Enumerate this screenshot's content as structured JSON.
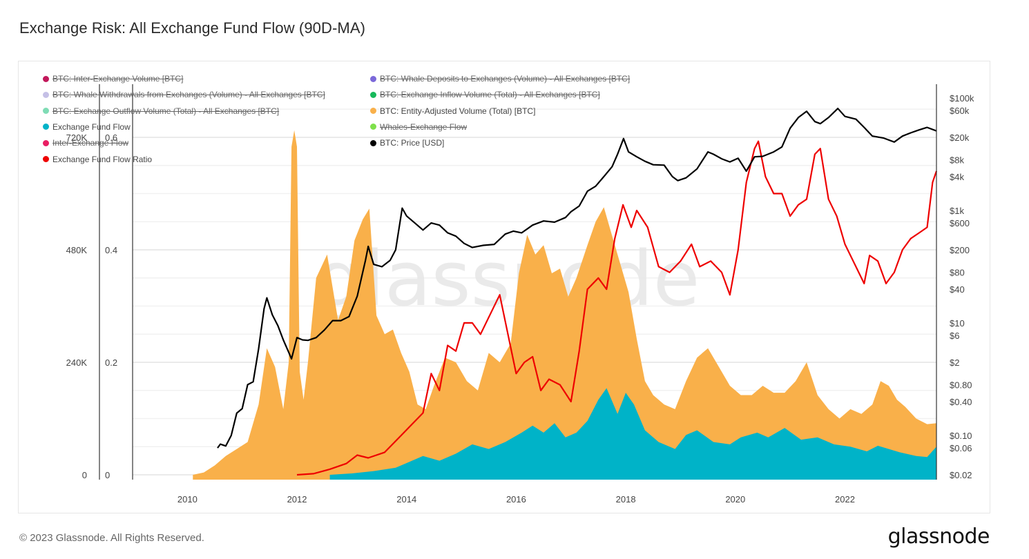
{
  "title": "Exchange Risk: All Exchange Fund Flow (90D-MA)",
  "footer": {
    "copyright": "© 2023 Glassnode. All Rights Reserved.",
    "logo": "glassnode"
  },
  "watermark": "glassnode",
  "legend": [
    {
      "label": "BTC: Inter-Exchange Volume [BTC]",
      "color": "#c2185b",
      "enabled": false
    },
    {
      "label": "BTC: Whale Deposits to Exchanges (Volume) - All Exchanges [BTC]",
      "color": "#7b68d9",
      "enabled": false
    },
    {
      "label": "BTC: Whale Withdrawals from Exchanges (Volume) - All Exchanges [BTC]",
      "color": "#c5c0e6",
      "enabled": false
    },
    {
      "label": "BTC: Exchange Inflow Volume (Total) - All Exchanges [BTC]",
      "color": "#16b85a",
      "enabled": false
    },
    {
      "label": "BTC: Exchange Outflow Volume (Total) - All Exchanges [BTC]",
      "color": "#7fdcb5",
      "enabled": false
    },
    {
      "label": "BTC: Entity-Adjusted Volume (Total) [BTC]",
      "color": "#f9b04a",
      "enabled": true
    },
    {
      "label": "Exchange Fund Flow",
      "color": "#00b3c8",
      "enabled": true
    },
    {
      "label": "Whales-Exchange Flow",
      "color": "#7ee04a",
      "enabled": false
    },
    {
      "label": "Inter-Exchange Flow",
      "color": "#e91e63",
      "enabled": false
    },
    {
      "label": "BTC: Price [USD]",
      "color": "#000000",
      "enabled": true
    },
    {
      "label": "Exchange Fund Flow Ratio",
      "color": "#ee0000",
      "enabled": true
    }
  ],
  "chart_data": {
    "type": "area",
    "title": "Exchange Risk: All Exchange Fund Flow (90D-MA)",
    "x_range": [
      2009.0,
      2023.67
    ],
    "x_ticks": [
      "2010",
      "2012",
      "2014",
      "2016",
      "2018",
      "2020",
      "2022"
    ],
    "x_tick_values": [
      2010,
      2012,
      2014,
      2016,
      2018,
      2020,
      2022
    ],
    "y_axis_volume": {
      "ticks": [
        "0",
        "240K",
        "480K",
        "720K"
      ],
      "tick_values": [
        0,
        240000,
        480000,
        720000
      ],
      "range": [
        0,
        780000
      ]
    },
    "y_axis_ratio": {
      "ticks": [
        "0",
        "0.2",
        "0.4",
        "0.6"
      ],
      "tick_values": [
        0,
        0.2,
        0.4,
        0.6
      ],
      "range": [
        0,
        0.65
      ]
    },
    "y_axis_price": {
      "scale": "log",
      "ticks": [
        "$100k",
        "$60k",
        "$20k",
        "$8k",
        "$4k",
        "$1k",
        "$600",
        "$200",
        "$80",
        "$40",
        "$10",
        "$6",
        "$2",
        "$0.80",
        "$0.40",
        "$0.10",
        "$0.06",
        "$0.02"
      ],
      "tick_values": [
        100000,
        60000,
        20000,
        8000,
        4000,
        1000,
        600,
        200,
        80,
        40,
        10,
        6,
        2,
        0.8,
        0.4,
        0.1,
        0.06,
        0.02
      ],
      "range": [
        0.02,
        100000
      ]
    },
    "grid": true,
    "legend_position": "top-left",
    "series": [
      {
        "name": "BTC: Entity-Adjusted Volume (Total) [BTC]",
        "type": "area",
        "axis": "volume",
        "color": "#f9b04a",
        "x": [
          2010.1,
          2010.3,
          2010.5,
          2010.7,
          2010.9,
          2011.1,
          2011.3,
          2011.45,
          2011.6,
          2011.75,
          2011.85,
          2011.9,
          2011.95,
          2012.0,
          2012.05,
          2012.12,
          2012.2,
          2012.35,
          2012.55,
          2012.75,
          2012.9,
          2013.05,
          2013.2,
          2013.32,
          2013.45,
          2013.6,
          2013.75,
          2013.9,
          2014.05,
          2014.2,
          2014.35,
          2014.5,
          2014.7,
          2014.9,
          2015.1,
          2015.3,
          2015.5,
          2015.7,
          2015.9,
          2016.05,
          2016.2,
          2016.35,
          2016.5,
          2016.65,
          2016.8,
          2016.95,
          2017.1,
          2017.3,
          2017.45,
          2017.6,
          2017.75,
          2017.9,
          2018.05,
          2018.2,
          2018.35,
          2018.5,
          2018.7,
          2018.9,
          2019.1,
          2019.3,
          2019.5,
          2019.7,
          2019.9,
          2020.1,
          2020.3,
          2020.5,
          2020.7,
          2020.9,
          2021.1,
          2021.3,
          2021.5,
          2021.7,
          2021.9,
          2022.1,
          2022.3,
          2022.5,
          2022.65,
          2022.8,
          2022.95,
          2023.1,
          2023.3,
          2023.5,
          2023.67
        ],
        "values": [
          0,
          5000,
          20000,
          40000,
          55000,
          70000,
          150000,
          270000,
          230000,
          140000,
          240000,
          700000,
          735000,
          700000,
          220000,
          160000,
          240000,
          420000,
          470000,
          330000,
          380000,
          500000,
          545000,
          568000,
          340000,
          300000,
          310000,
          260000,
          220000,
          150000,
          140000,
          190000,
          250000,
          240000,
          200000,
          180000,
          260000,
          240000,
          280000,
          430000,
          512000,
          470000,
          490000,
          430000,
          440000,
          380000,
          420000,
          490000,
          540000,
          571000,
          510000,
          450000,
          390000,
          290000,
          200000,
          170000,
          150000,
          140000,
          200000,
          250000,
          270000,
          230000,
          190000,
          170000,
          170000,
          190000,
          175000,
          175000,
          200000,
          240000,
          170000,
          140000,
          120000,
          140000,
          130000,
          150000,
          200000,
          190000,
          160000,
          145000,
          120000,
          108000,
          110000
        ]
      },
      {
        "name": "Exchange Fund Flow",
        "type": "area",
        "axis": "volume",
        "color": "#00b3c8",
        "x": [
          2012.6,
          2013.0,
          2013.4,
          2013.8,
          2014.0,
          2014.3,
          2014.6,
          2014.9,
          2015.2,
          2015.5,
          2015.8,
          2016.1,
          2016.3,
          2016.5,
          2016.7,
          2016.9,
          2017.1,
          2017.3,
          2017.5,
          2017.65,
          2017.85,
          2018.0,
          2018.15,
          2018.35,
          2018.6,
          2018.9,
          2019.1,
          2019.3,
          2019.6,
          2019.9,
          2020.1,
          2020.4,
          2020.6,
          2020.9,
          2021.2,
          2021.5,
          2021.8,
          2022.1,
          2022.4,
          2022.6,
          2022.8,
          2023.0,
          2023.3,
          2023.5,
          2023.67
        ],
        "values": [
          0,
          3000,
          8000,
          15000,
          25000,
          40000,
          30000,
          45000,
          65000,
          55000,
          70000,
          90000,
          105000,
          90000,
          110000,
          80000,
          90000,
          115000,
          160000,
          185000,
          130000,
          175000,
          150000,
          95000,
          70000,
          55000,
          85000,
          95000,
          70000,
          65000,
          80000,
          90000,
          80000,
          100000,
          75000,
          80000,
          65000,
          60000,
          50000,
          62000,
          55000,
          48000,
          40000,
          38000,
          60000
        ]
      },
      {
        "name": "Exchange Fund Flow Ratio",
        "type": "line",
        "axis": "ratio",
        "color": "#ee0000",
        "x": [
          2012.0,
          2012.3,
          2012.6,
          2012.9,
          2013.1,
          2013.3,
          2013.6,
          2013.9,
          2014.1,
          2014.3,
          2014.45,
          2014.6,
          2014.75,
          2014.9,
          2015.05,
          2015.2,
          2015.35,
          2015.5,
          2015.7,
          2015.85,
          2016.0,
          2016.15,
          2016.3,
          2016.45,
          2016.6,
          2016.8,
          2017.0,
          2017.15,
          2017.3,
          2017.5,
          2017.65,
          2017.8,
          2017.95,
          2018.1,
          2018.2,
          2018.4,
          2018.6,
          2018.8,
          2019.0,
          2019.2,
          2019.35,
          2019.55,
          2019.75,
          2019.9,
          2020.05,
          2020.2,
          2020.35,
          2020.42,
          2020.55,
          2020.7,
          2020.85,
          2021.0,
          2021.15,
          2021.3,
          2021.45,
          2021.55,
          2021.7,
          2021.85,
          2022.0,
          2022.2,
          2022.35,
          2022.45,
          2022.6,
          2022.75,
          2022.9,
          2023.05,
          2023.2,
          2023.35,
          2023.5,
          2023.6,
          2023.67
        ],
        "values": [
          0.0,
          0.002,
          0.01,
          0.02,
          0.035,
          0.03,
          0.04,
          0.07,
          0.09,
          0.11,
          0.18,
          0.15,
          0.23,
          0.22,
          0.27,
          0.27,
          0.25,
          0.28,
          0.32,
          0.25,
          0.18,
          0.2,
          0.21,
          0.15,
          0.17,
          0.16,
          0.13,
          0.22,
          0.33,
          0.35,
          0.33,
          0.42,
          0.48,
          0.44,
          0.47,
          0.44,
          0.37,
          0.36,
          0.38,
          0.41,
          0.37,
          0.38,
          0.36,
          0.32,
          0.4,
          0.52,
          0.58,
          0.593,
          0.53,
          0.5,
          0.5,
          0.46,
          0.48,
          0.49,
          0.57,
          0.58,
          0.49,
          0.46,
          0.41,
          0.37,
          0.34,
          0.39,
          0.38,
          0.34,
          0.36,
          0.4,
          0.42,
          0.43,
          0.44,
          0.52,
          0.54
        ]
      },
      {
        "name": "BTC: Price [USD]",
        "type": "line",
        "axis": "price",
        "color": "#000000",
        "x": [
          2010.55,
          2010.6,
          2010.7,
          2010.8,
          2010.9,
          2011.0,
          2011.1,
          2011.2,
          2011.3,
          2011.4,
          2011.45,
          2011.55,
          2011.65,
          2011.75,
          2011.85,
          2011.9,
          2012.0,
          2012.1,
          2012.2,
          2012.35,
          2012.5,
          2012.65,
          2012.8,
          2012.95,
          2013.1,
          2013.25,
          2013.3,
          2013.4,
          2013.55,
          2013.7,
          2013.8,
          2013.92,
          2014.0,
          2014.15,
          2014.3,
          2014.45,
          2014.6,
          2014.75,
          2014.9,
          2015.05,
          2015.2,
          2015.4,
          2015.6,
          2015.8,
          2015.95,
          2016.1,
          2016.3,
          2016.5,
          2016.7,
          2016.9,
          2017.0,
          2017.15,
          2017.3,
          2017.45,
          2017.6,
          2017.75,
          2017.85,
          2017.96,
          2018.05,
          2018.2,
          2018.35,
          2018.5,
          2018.7,
          2018.85,
          2018.95,
          2019.1,
          2019.3,
          2019.5,
          2019.6,
          2019.75,
          2019.9,
          2020.05,
          2020.2,
          2020.35,
          2020.5,
          2020.7,
          2020.85,
          2021.0,
          2021.15,
          2021.3,
          2021.45,
          2021.55,
          2021.7,
          2021.87,
          2022.0,
          2022.2,
          2022.35,
          2022.5,
          2022.7,
          2022.9,
          2023.05,
          2023.2,
          2023.35,
          2023.5,
          2023.67
        ],
        "values": [
          0.06,
          0.07,
          0.065,
          0.1,
          0.25,
          0.3,
          0.8,
          0.9,
          3.5,
          18,
          28,
          14,
          9,
          5,
          3.0,
          2.3,
          5.5,
          5.0,
          4.9,
          5.5,
          7.5,
          11,
          11,
          13,
          30,
          130,
          230,
          110,
          100,
          130,
          200,
          1100,
          800,
          600,
          450,
          600,
          550,
          400,
          350,
          260,
          220,
          240,
          250,
          380,
          430,
          400,
          550,
          650,
          620,
          750,
          950,
          1200,
          2200,
          2700,
          4000,
          6000,
          10000,
          19000,
          11000,
          9000,
          7500,
          6500,
          6400,
          4000,
          3400,
          3800,
          5500,
          11000,
          10000,
          8300,
          7300,
          8500,
          5000,
          9000,
          9200,
          11000,
          13500,
          29000,
          45000,
          58000,
          38000,
          35000,
          45000,
          65000,
          47000,
          42000,
          30000,
          21000,
          19500,
          16500,
          21000,
          24000,
          27000,
          30000,
          26000
        ]
      }
    ]
  }
}
